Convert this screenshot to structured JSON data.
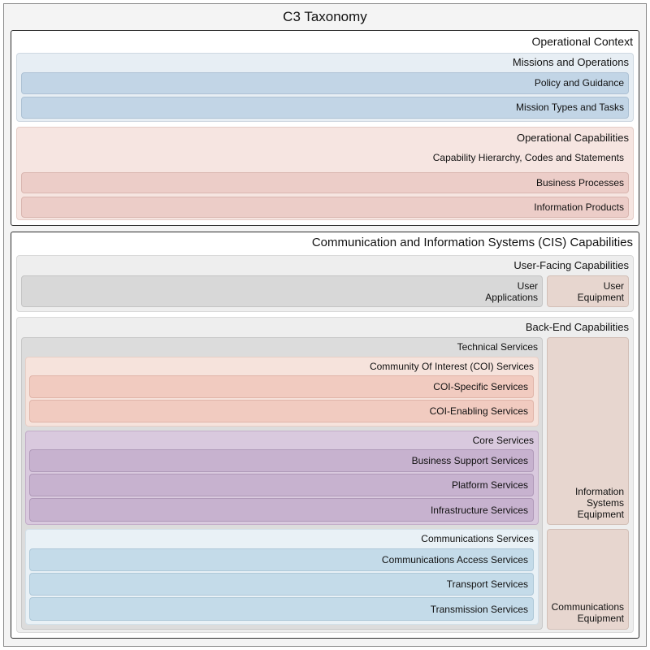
{
  "diagram": {
    "title": "C3 Taxonomy",
    "operational_context": {
      "label": "Operational Context",
      "missions": {
        "label": "Missions and Operations",
        "items": [
          "Policy and Guidance",
          "Mission Types and Tasks"
        ]
      },
      "capabilities": {
        "label": "Operational Capabilities",
        "subtitle": "Capability Hierarchy, Codes and Statements",
        "items": [
          "Business Processes",
          "Information Products"
        ]
      }
    },
    "cis": {
      "label": "Communication and Information Systems (CIS) Capabilities",
      "user_facing": {
        "label": "User-Facing Capabilities",
        "applications": "User\nApplications",
        "equipment": "User\nEquipment"
      },
      "back_end": {
        "label": "Back-End Capabilities",
        "technical": {
          "label": "Technical Services",
          "coi": {
            "label": "Community Of Interest (COI) Services",
            "items": [
              "COI-Specific Services",
              "COI-Enabling Services"
            ]
          },
          "core": {
            "label": "Core Services",
            "items": [
              "Business Support Services",
              "Platform Services",
              "Infrastructure Services"
            ]
          },
          "communications": {
            "label": "Communications Services",
            "items": [
              "Communications Access Services",
              "Transport Services",
              "Transmission Services"
            ]
          }
        },
        "is_equipment": "Information\nSystems\nEquipment",
        "comm_equipment": "Communications\nEquipment"
      }
    }
  },
  "colors": {
    "missions": "#c2d5e6",
    "operational_capabilities": "#eccdc8",
    "user_applications": "#d8d8d8",
    "equipment": "#e7d6cf",
    "coi": "#f1cbc0",
    "core": "#c7b2cf",
    "communications": "#c4dbe9"
  }
}
